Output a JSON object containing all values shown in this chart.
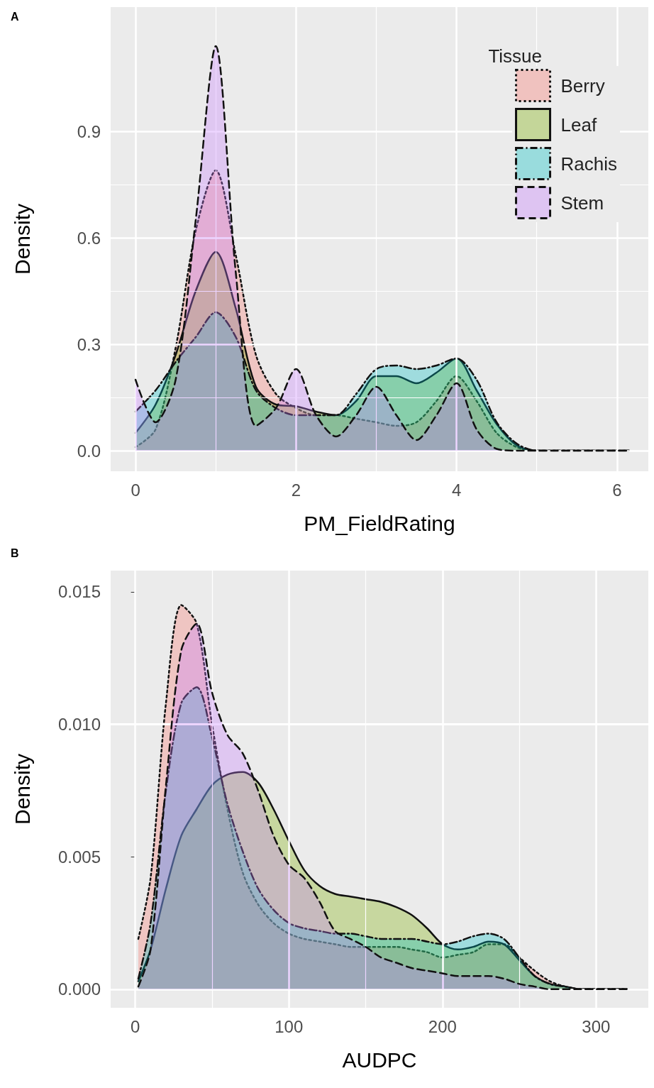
{
  "chart_data": [
    {
      "type": "area",
      "title": "A",
      "xlabel": "PM_FieldRating",
      "ylabel": "Density",
      "legend_title": "Tissue",
      "legend": "top right",
      "grid": true,
      "x": [
        0,
        0.25,
        0.5,
        0.75,
        1,
        1.25,
        1.5,
        1.75,
        2,
        2.25,
        2.5,
        2.75,
        3,
        3.25,
        3.5,
        3.75,
        4,
        4.25,
        4.5,
        4.75,
        5,
        5.25,
        5.5,
        5.75,
        6,
        6.15
      ],
      "xlim": [
        -0.31,
        6.39
      ],
      "ylim": [
        -0.058,
        1.25
      ],
      "xticks": [
        0,
        2,
        4,
        6
      ],
      "yticks": [
        {
          "value": 0,
          "label": "0.0"
        },
        0.3,
        0.6,
        0.9
      ],
      "series": [
        {
          "name": "Berry",
          "color": "#f8766d",
          "line_style": "dotted",
          "values": [
            0.01,
            0.06,
            0.29,
            0.62,
            0.79,
            0.55,
            0.27,
            0.16,
            0.12,
            0.1,
            0.1,
            0.09,
            0.08,
            0.07,
            0.08,
            0.14,
            0.21,
            0.14,
            0.05,
            0.01,
            0,
            0,
            0,
            0,
            0,
            0
          ]
        },
        {
          "name": "Leaf",
          "color": "#7cae00",
          "line_style": "solid",
          "values": [
            0.05,
            0.13,
            0.27,
            0.45,
            0.56,
            0.4,
            0.18,
            0.13,
            0.125,
            0.11,
            0.1,
            0.14,
            0.21,
            0.21,
            0.19,
            0.22,
            0.26,
            0.17,
            0.075,
            0.015,
            0,
            0,
            0,
            0,
            0,
            0
          ]
        },
        {
          "name": "Rachis",
          "color": "#00bfc4",
          "line_style": "dashdot",
          "values": [
            0.11,
            0.17,
            0.25,
            0.32,
            0.39,
            0.32,
            0.17,
            0.12,
            0.1,
            0.1,
            0.1,
            0.16,
            0.23,
            0.24,
            0.23,
            0.24,
            0.26,
            0.2,
            0.08,
            0.02,
            0,
            0,
            0,
            0,
            0,
            0
          ]
        },
        {
          "name": "Stem",
          "color": "#c77cff",
          "line_style": "dashed",
          "values": [
            0.2,
            0.08,
            0.2,
            0.65,
            1.14,
            0.5,
            0.07,
            0.12,
            0.23,
            0.1,
            0.04,
            0.1,
            0.18,
            0.1,
            0.03,
            0.1,
            0.19,
            0.06,
            0.005,
            0,
            0,
            0,
            0,
            0,
            0,
            0
          ]
        }
      ]
    },
    {
      "type": "area",
      "title": "B",
      "xlabel": "AUDPC",
      "ylabel": "Density",
      "grid": true,
      "x": [
        2,
        10,
        20,
        30,
        40,
        50,
        60,
        70,
        80,
        90,
        100,
        110,
        120,
        130,
        140,
        150,
        160,
        170,
        180,
        190,
        200,
        210,
        220,
        230,
        240,
        250,
        260,
        270,
        280,
        290,
        300,
        310,
        320
      ],
      "xlim": [
        -16,
        334
      ],
      "ylim": [
        -0.0007,
        0.0158
      ],
      "xticks": [
        0,
        100,
        200,
        300
      ],
      "yticks": [
        {
          "value": 0,
          "label": "0.000"
        },
        {
          "value": 0.005,
          "label": "0.005"
        },
        {
          "value": 0.01,
          "label": "0.010"
        },
        {
          "value": 0.015,
          "label": "0.015"
        }
      ],
      "series": [
        {
          "color": "#f8766d",
          "line_style": "dotted",
          "values": [
            0.0019,
            0.0042,
            0.0108,
            0.0145,
            0.0138,
            0.01,
            0.0068,
            0.0044,
            0.0032,
            0.0025,
            0.0021,
            0.0019,
            0.0018,
            0.0017,
            0.0016,
            0.0016,
            0.0016,
            0.0016,
            0.0015,
            0.0014,
            0.0012,
            0.0013,
            0.0014,
            0.0017,
            0.0017,
            0.0012,
            0.0007,
            0.0003,
            0.0001,
            0,
            0,
            0,
            0
          ]
        },
        {
          "color": "#7cae00",
          "line_style": "solid",
          "values": [
            0.0003,
            0.0015,
            0.0038,
            0.0058,
            0.0068,
            0.0077,
            0.0081,
            0.0082,
            0.0078,
            0.0068,
            0.0056,
            0.0045,
            0.0039,
            0.0036,
            0.0035,
            0.0034,
            0.0033,
            0.0031,
            0.0028,
            0.0023,
            0.0017,
            0.0015,
            0.0016,
            0.0018,
            0.0017,
            0.0011,
            0.0005,
            0.0002,
            0.0001,
            0,
            0,
            0,
            0
          ]
        },
        {
          "color": "#00bfc4",
          "line_style": "dashdot",
          "values": [
            0.0004,
            0.0025,
            0.0075,
            0.0108,
            0.0114,
            0.0095,
            0.007,
            0.0052,
            0.0038,
            0.003,
            0.0025,
            0.0023,
            0.0022,
            0.0021,
            0.0021,
            0.002,
            0.0019,
            0.0019,
            0.0019,
            0.0018,
            0.0017,
            0.0018,
            0.002,
            0.0021,
            0.0019,
            0.0012,
            0.0005,
            0.0002,
            0.0001,
            0,
            0,
            0,
            0
          ]
        },
        {
          "color": "#c77cff",
          "line_style": "dashed",
          "values": [
            0.0001,
            0.0015,
            0.0077,
            0.0128,
            0.0138,
            0.0112,
            0.0096,
            0.0089,
            0.0075,
            0.0058,
            0.0047,
            0.0042,
            0.0033,
            0.0022,
            0.0019,
            0.0016,
            0.0012,
            0.001,
            0.0008,
            0.0007,
            0.0006,
            0.0005,
            0.0005,
            0.0005,
            0.0004,
            0.0002,
            0.0001,
            0,
            0,
            0,
            0,
            0,
            0
          ]
        }
      ]
    }
  ]
}
